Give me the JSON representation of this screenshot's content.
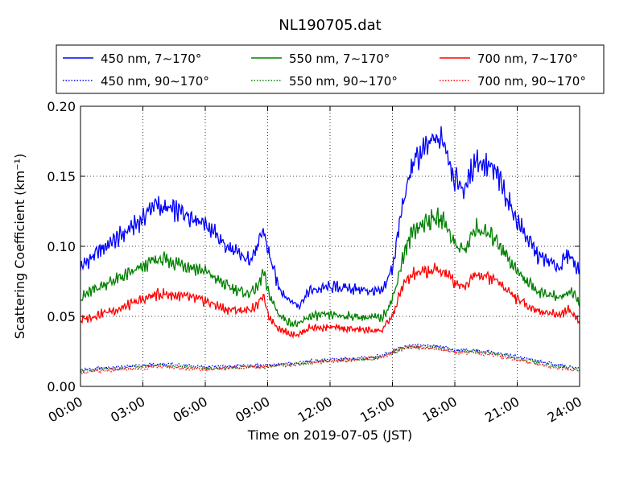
{
  "chart_data": {
    "type": "line",
    "title": "NL190705.dat",
    "xlabel": "Time on 2019-07-05 (JST)",
    "ylabel": "Scattering Coefficient (km⁻¹)",
    "xlim": [
      "00:00",
      "24:00"
    ],
    "ylim": [
      0.0,
      0.2
    ],
    "x_ticks": [
      "00:00",
      "03:00",
      "06:00",
      "09:00",
      "12:00",
      "15:00",
      "18:00",
      "21:00",
      "24:00"
    ],
    "y_ticks": [
      "0.00",
      "0.05",
      "0.10",
      "0.15",
      "0.20"
    ],
    "grid": true,
    "legend_position": "top",
    "x_hours": [
      0,
      1,
      2,
      3,
      3.5,
      4,
      5,
      6,
      7,
      8,
      8.5,
      8.8,
      9,
      9.5,
      10,
      10.5,
      11,
      12,
      13,
      14,
      14.5,
      15,
      15.5,
      16,
      17,
      17.5,
      18,
      18.5,
      19,
      20,
      21,
      22,
      23,
      23.5,
      24
    ],
    "series": [
      {
        "name": "450 nm, 7∼170°",
        "style": "solid",
        "color": "#0000ff",
        "values": [
          0.085,
          0.098,
          0.108,
          0.12,
          0.13,
          0.127,
          0.124,
          0.117,
          0.1,
          0.09,
          0.098,
          0.112,
          0.098,
          0.072,
          0.062,
          0.058,
          0.068,
          0.071,
          0.07,
          0.068,
          0.067,
          0.085,
          0.13,
          0.16,
          0.176,
          0.175,
          0.148,
          0.14,
          0.163,
          0.152,
          0.118,
          0.093,
          0.085,
          0.095,
          0.082
        ]
      },
      {
        "name": "550 nm, 7∼170°",
        "style": "solid",
        "color": "#008000",
        "values": [
          0.063,
          0.072,
          0.078,
          0.085,
          0.09,
          0.09,
          0.087,
          0.082,
          0.072,
          0.066,
          0.07,
          0.082,
          0.068,
          0.052,
          0.046,
          0.044,
          0.05,
          0.051,
          0.05,
          0.049,
          0.049,
          0.062,
          0.092,
          0.112,
          0.12,
          0.118,
          0.102,
          0.097,
          0.113,
          0.105,
          0.082,
          0.068,
          0.063,
          0.068,
          0.06
        ]
      },
      {
        "name": "700 nm, 7∼170°",
        "style": "solid",
        "color": "#ff0000",
        "values": [
          0.047,
          0.052,
          0.056,
          0.062,
          0.065,
          0.066,
          0.064,
          0.061,
          0.055,
          0.054,
          0.058,
          0.065,
          0.051,
          0.042,
          0.038,
          0.037,
          0.042,
          0.042,
          0.041,
          0.04,
          0.04,
          0.05,
          0.072,
          0.08,
          0.083,
          0.082,
          0.074,
          0.072,
          0.081,
          0.076,
          0.062,
          0.054,
          0.051,
          0.055,
          0.046
        ]
      },
      {
        "name": "450 nm, 90∼170°",
        "style": "dotted",
        "color": "#0000ff",
        "values": [
          0.012,
          0.013,
          0.014,
          0.015,
          0.016,
          0.016,
          0.015,
          0.014,
          0.014,
          0.015,
          0.015,
          0.015,
          0.015,
          0.016,
          0.016,
          0.017,
          0.018,
          0.019,
          0.02,
          0.021,
          0.022,
          0.025,
          0.028,
          0.029,
          0.029,
          0.028,
          0.026,
          0.026,
          0.026,
          0.024,
          0.021,
          0.018,
          0.015,
          0.014,
          0.013
        ]
      },
      {
        "name": "550 nm, 90∼170°",
        "style": "dotted",
        "color": "#008000",
        "values": [
          0.011,
          0.012,
          0.013,
          0.014,
          0.015,
          0.015,
          0.014,
          0.013,
          0.013,
          0.014,
          0.014,
          0.014,
          0.014,
          0.015,
          0.015,
          0.016,
          0.017,
          0.018,
          0.019,
          0.02,
          0.021,
          0.024,
          0.027,
          0.028,
          0.028,
          0.027,
          0.025,
          0.025,
          0.025,
          0.023,
          0.02,
          0.017,
          0.014,
          0.013,
          0.012
        ]
      },
      {
        "name": "700 nm, 90∼170°",
        "style": "dotted",
        "color": "#ff0000",
        "values": [
          0.01,
          0.011,
          0.012,
          0.013,
          0.014,
          0.014,
          0.013,
          0.012,
          0.013,
          0.014,
          0.014,
          0.014,
          0.014,
          0.015,
          0.015,
          0.016,
          0.017,
          0.018,
          0.019,
          0.02,
          0.021,
          0.024,
          0.027,
          0.028,
          0.027,
          0.026,
          0.024,
          0.024,
          0.024,
          0.022,
          0.019,
          0.016,
          0.013,
          0.012,
          0.011
        ]
      }
    ]
  }
}
